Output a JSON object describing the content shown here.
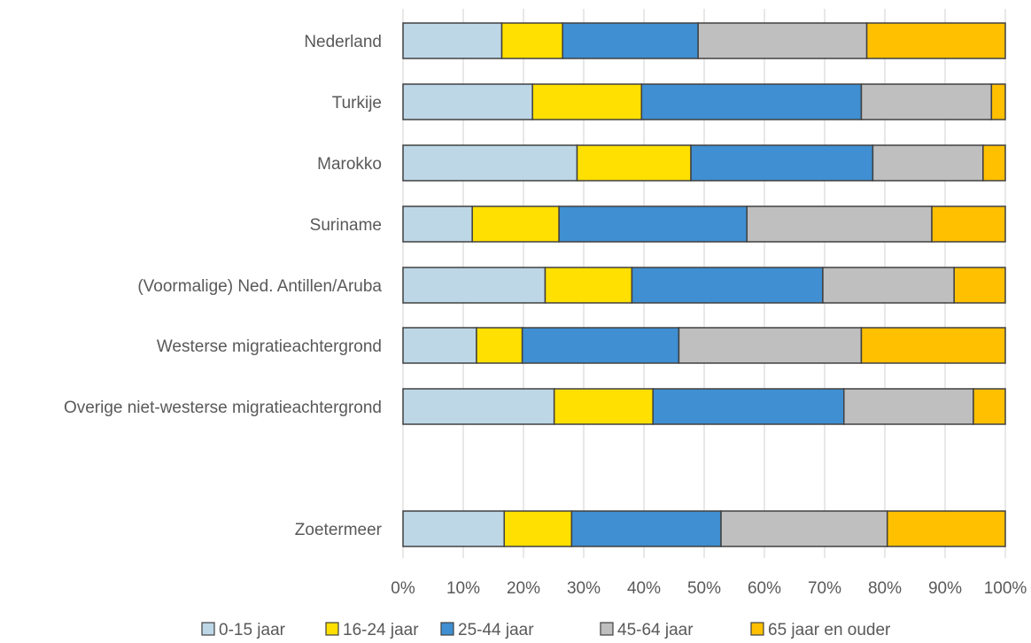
{
  "chart_data": {
    "type": "bar",
    "orientation": "horizontal",
    "stacked": "percent",
    "title": "",
    "xlabel": "",
    "ylabel": "",
    "xlim": [
      0,
      100
    ],
    "grid": "vertical",
    "legend_position": "bottom",
    "x_ticks": [
      "0%",
      "10%",
      "20%",
      "30%",
      "40%",
      "50%",
      "60%",
      "70%",
      "80%",
      "90%",
      "100%"
    ],
    "categories": [
      "Nederland",
      "Turkije",
      "Marokko",
      "Suriname",
      "(Voormalige) Ned. Antillen/Aruba",
      "Westerse migratieachtergrond",
      "Overige niet-westerse migratieachtergrond",
      "",
      "Zoetermeer"
    ],
    "series": [
      {
        "name": "0-15 jaar",
        "color": "#BDD7E7",
        "values": [
          16.4,
          21.5,
          28.9,
          11.5,
          23.6,
          12.2,
          25.1,
          null,
          16.8
        ]
      },
      {
        "name": "16-24 jaar",
        "color": "#FFE000",
        "values": [
          10.1,
          18.1,
          18.9,
          14.4,
          14.4,
          7.6,
          16.4,
          null,
          11.2
        ]
      },
      {
        "name": "25-44 jaar",
        "color": "#3F8FD2",
        "values": [
          22.5,
          36.5,
          30.2,
          31.2,
          31.7,
          26.0,
          31.7,
          null,
          24.8
        ]
      },
      {
        "name": "45-64 jaar",
        "color": "#BFBFBF",
        "values": [
          28.0,
          21.6,
          18.3,
          30.7,
          21.8,
          30.3,
          21.5,
          null,
          27.6
        ]
      },
      {
        "name": "65 jaar en ouder",
        "color": "#FFC000",
        "values": [
          23.0,
          2.3,
          3.7,
          12.2,
          8.5,
          23.9,
          5.3,
          null,
          19.6
        ]
      }
    ]
  }
}
